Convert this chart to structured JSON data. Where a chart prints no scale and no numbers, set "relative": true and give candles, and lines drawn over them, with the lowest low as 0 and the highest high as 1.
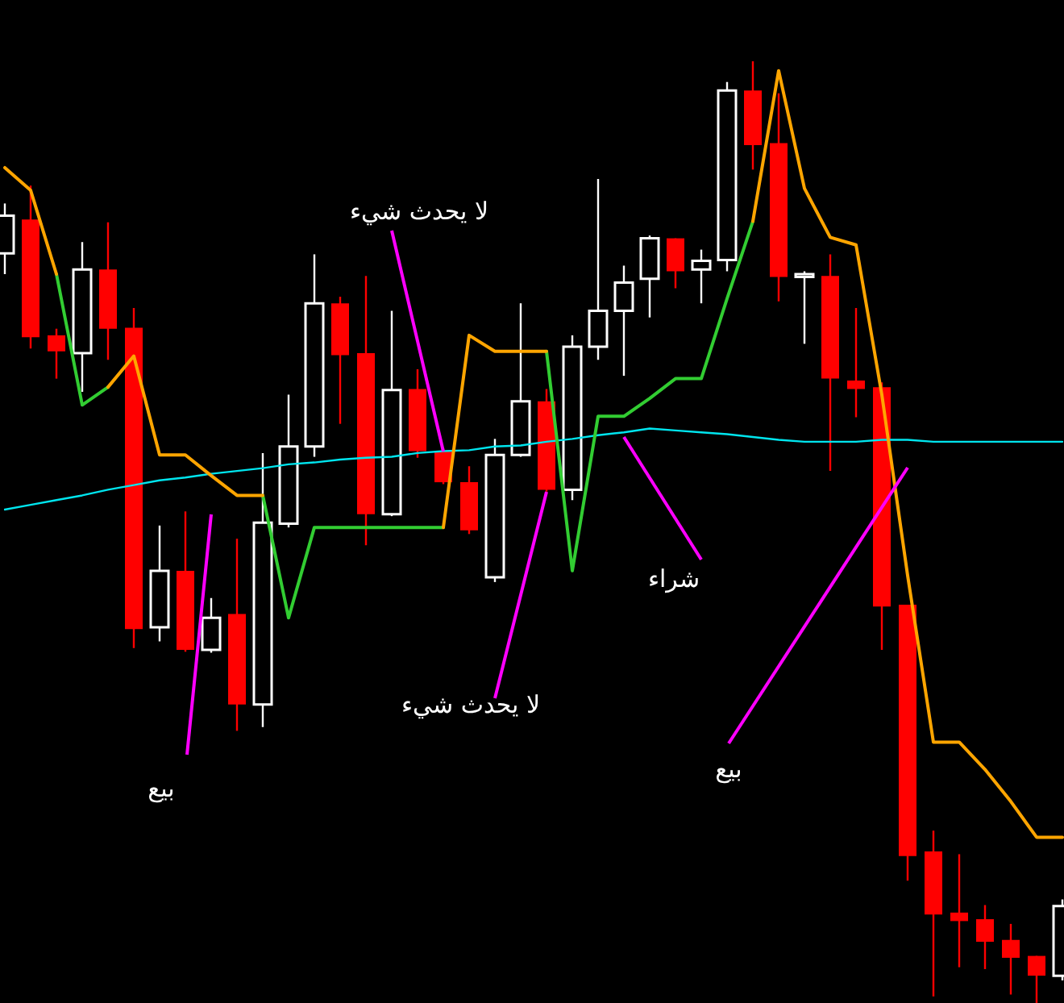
{
  "chart_data": {
    "type": "candlestick",
    "relative": true,
    "categories": [
      null,
      null,
      null,
      null,
      null,
      null,
      null,
      null,
      null,
      null,
      null,
      null,
      null,
      null,
      null,
      null,
      null,
      null,
      null,
      null,
      null,
      null,
      null,
      null,
      null,
      null,
      null,
      null,
      null,
      null,
      null,
      null,
      null,
      null,
      null,
      null,
      null,
      null,
      null,
      null,
      null,
      null
    ],
    "ohlc": [
      [
        0.796,
        0.849,
        0.774,
        0.836
      ],
      [
        0.832,
        0.868,
        0.695,
        0.707
      ],
      [
        0.709,
        0.716,
        0.663,
        0.692
      ],
      [
        0.69,
        0.808,
        0.649,
        0.779
      ],
      [
        0.779,
        0.829,
        0.683,
        0.716
      ],
      [
        0.717,
        0.738,
        0.377,
        0.397
      ],
      [
        0.399,
        0.507,
        0.384,
        0.459
      ],
      [
        0.459,
        0.522,
        0.373,
        0.375
      ],
      [
        0.375,
        0.43,
        0.372,
        0.409
      ],
      [
        0.413,
        0.493,
        0.289,
        0.317
      ],
      [
        0.317,
        0.584,
        0.293,
        0.51
      ],
      [
        0.509,
        0.646,
        0.505,
        0.591
      ],
      [
        0.591,
        0.795,
        0.58,
        0.743
      ],
      [
        0.743,
        0.75,
        0.615,
        0.688
      ],
      [
        0.69,
        0.772,
        0.486,
        0.519
      ],
      [
        0.519,
        0.735,
        0.517,
        0.651
      ],
      [
        0.652,
        0.673,
        0.579,
        0.586
      ],
      [
        0.586,
        0.589,
        0.551,
        0.553
      ],
      [
        0.553,
        0.57,
        0.498,
        0.502
      ],
      [
        0.452,
        0.599,
        0.447,
        0.582
      ],
      [
        0.582,
        0.743,
        0.58,
        0.639
      ],
      [
        0.639,
        0.652,
        0.543,
        0.545
      ],
      [
        0.545,
        0.709,
        0.534,
        0.697
      ],
      [
        0.697,
        0.875,
        0.683,
        0.735
      ],
      [
        0.735,
        0.783,
        0.666,
        0.765
      ],
      [
        0.769,
        0.815,
        0.728,
        0.812
      ],
      [
        0.812,
        0.812,
        0.759,
        0.777
      ],
      [
        0.779,
        0.8,
        0.743,
        0.788
      ],
      [
        0.789,
        0.978,
        0.777,
        0.969
      ],
      [
        0.969,
        1,
        0.885,
        0.911
      ],
      [
        0.913,
        0.966,
        0.745,
        0.771
      ],
      [
        0.771,
        0.777,
        0.7,
        0.774
      ],
      [
        0.772,
        0.795,
        0.565,
        0.663
      ],
      [
        0.661,
        0.738,
        0.622,
        0.652
      ],
      [
        0.654,
        0.659,
        0.375,
        0.421
      ],
      [
        0.423,
        0.423,
        0.13,
        0.156
      ],
      [
        0.161,
        0.183,
        0.007,
        0.094
      ],
      [
        0.096,
        0.158,
        0.038,
        0.087
      ],
      [
        0.089,
        0.104,
        0.036,
        0.065
      ],
      [
        0.067,
        0.084,
        0.009,
        0.048
      ],
      [
        0.05,
        0.05,
        0,
        0.029
      ],
      [
        0.029,
        0.11,
        0.024,
        0.103
      ]
    ],
    "series": [
      {
        "type": "line",
        "color": "#ffa500",
        "values": [
          0.887,
          0.863,
          0.774,
          null,
          0.654,
          0.687,
          0.582,
          0.582,
          0.56,
          0.539,
          0.539,
          null,
          null,
          null,
          null,
          null,
          null,
          0.505,
          0.709,
          0.692,
          0.692,
          0.692,
          null,
          null,
          null,
          null,
          null,
          null,
          null,
          0.83,
          0.99,
          0.865,
          0.813,
          0.805,
          0.646,
          0.454,
          0.277,
          0.277,
          0.248,
          0.214,
          0.176,
          0.176
        ]
      },
      {
        "type": "line",
        "color": "#32cd32",
        "values": [
          null,
          null,
          0.774,
          0.635,
          0.654,
          null,
          null,
          null,
          null,
          null,
          0.539,
          0.409,
          0.505,
          0.505,
          0.505,
          0.505,
          0.505,
          0.505,
          null,
          null,
          null,
          0.692,
          0.459,
          0.623,
          0.623,
          0.642,
          0.663,
          0.663,
          0.748,
          0.83,
          null,
          null,
          null,
          null,
          null,
          null,
          null,
          null,
          null,
          null,
          null,
          null
        ]
      },
      {
        "type": "line",
        "color": "#00e5ee",
        "values": [
          0.524,
          0.529,
          0.534,
          0.539,
          0.545,
          0.55,
          0.555,
          0.558,
          0.562,
          0.565,
          0.568,
          0.572,
          0.574,
          0.577,
          0.579,
          0.58,
          0.584,
          0.586,
          0.587,
          0.591,
          0.592,
          0.596,
          0.599,
          0.603,
          0.606,
          0.61,
          0.608,
          0.606,
          0.604,
          0.601,
          0.598,
          0.596,
          0.596,
          0.596,
          0.598,
          0.598,
          0.596,
          0.596,
          0.596,
          0.596,
          0.596,
          0.596
        ]
      }
    ],
    "annotations": [
      "لا يحدث شيء",
      "لا يحدث شيء",
      "شراء",
      "بيع",
      "بيع"
    ]
  }
}
